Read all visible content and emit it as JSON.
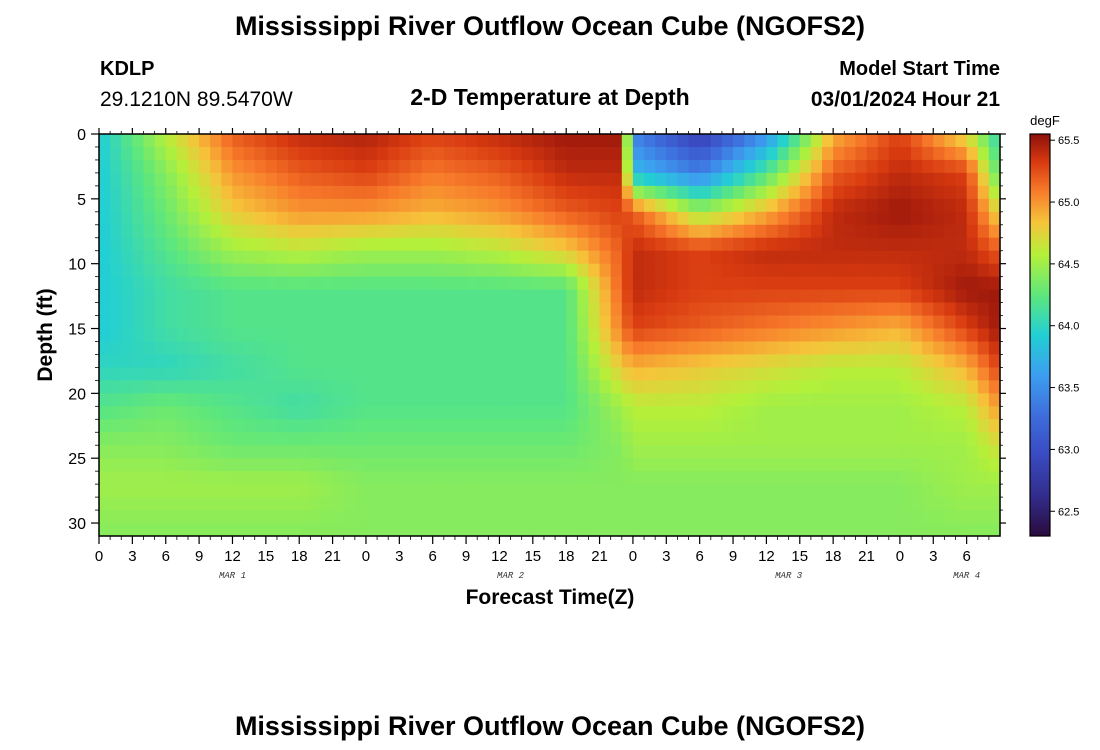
{
  "header": {
    "title": "Mississippi River Outflow Ocean Cube (NGOFS2)",
    "station_id": "KDLP",
    "station_coords": "29.1210N  89.5470W",
    "plot_title": "2-D Temperature at Depth",
    "model_start_label": "Model Start Time",
    "model_start_value": "03/01/2024 Hour 21"
  },
  "footer": {
    "title": "Mississippi River Outflow Ocean Cube (NGOFS2)"
  },
  "chart_data": {
    "type": "heatmap",
    "title": "2-D Temperature at Depth",
    "xlabel": "Forecast Time(Z)",
    "ylabel": "Depth (ft)",
    "xlim_hours": [
      0,
      81
    ],
    "ylim": [
      0,
      31
    ],
    "x_tick_labels": [
      "0",
      "3",
      "6",
      "9",
      "12",
      "15",
      "18",
      "21",
      "0",
      "3",
      "6",
      "9",
      "12",
      "15",
      "18",
      "21",
      "0",
      "3",
      "6",
      "9",
      "12",
      "15",
      "18",
      "21",
      "0",
      "3",
      "6"
    ],
    "y_ticks": [
      0,
      5,
      10,
      15,
      20,
      25,
      30
    ],
    "day_labels": [
      {
        "label": "MAR 1",
        "hour": 12
      },
      {
        "label": "MAR 2",
        "hour": 37
      },
      {
        "label": "MAR 3",
        "hour": 62
      },
      {
        "label": "MAR 4",
        "hour": 78
      }
    ],
    "colorbar": {
      "unit": "degF",
      "min": 62.3,
      "max": 65.55,
      "ticks": [
        62.5,
        63.0,
        63.5,
        64.0,
        64.5,
        65.0,
        65.5
      ],
      "tick_labels": [
        "62.5",
        "63.0",
        "63.5",
        "64.0",
        "64.5",
        "65.0",
        "65.5"
      ]
    },
    "depths_ft": [
      0,
      3,
      6,
      9,
      12,
      15,
      18,
      21,
      24,
      27,
      31
    ],
    "times_h": [
      0,
      6,
      12,
      18,
      24,
      30,
      36,
      42,
      47,
      48,
      54,
      60,
      66,
      72,
      78,
      81
    ],
    "temperature_degF": [
      [
        63.9,
        64.6,
        65.2,
        65.4,
        65.45,
        65.3,
        65.4,
        65.5,
        65.5,
        63.4,
        62.8,
        63.5,
        64.9,
        65.3,
        64.7,
        64.0
      ],
      [
        63.9,
        64.4,
        65.0,
        65.2,
        65.3,
        65.1,
        65.2,
        65.4,
        65.4,
        63.8,
        63.4,
        64.2,
        65.2,
        65.4,
        65.3,
        64.2
      ],
      [
        63.9,
        64.3,
        64.8,
        65.0,
        65.0,
        64.9,
        65.0,
        65.2,
        65.3,
        65.2,
        64.5,
        64.9,
        65.4,
        65.5,
        65.4,
        64.7
      ],
      [
        63.9,
        64.2,
        64.5,
        64.6,
        64.5,
        64.5,
        64.6,
        64.8,
        65.2,
        65.4,
        65.3,
        65.4,
        65.4,
        65.4,
        65.4,
        65.2
      ],
      [
        63.9,
        64.1,
        64.2,
        64.2,
        64.2,
        64.2,
        64.2,
        64.2,
        65.2,
        65.4,
        65.3,
        65.3,
        65.3,
        65.3,
        65.5,
        65.5
      ],
      [
        63.9,
        64.1,
        64.2,
        64.2,
        64.2,
        64.2,
        64.2,
        64.2,
        65.1,
        65.3,
        65.2,
        65.1,
        65.0,
        64.9,
        65.3,
        65.5
      ],
      [
        64.0,
        64.0,
        64.1,
        64.2,
        64.2,
        64.2,
        64.2,
        64.2,
        64.8,
        64.9,
        64.8,
        64.7,
        64.6,
        64.6,
        64.9,
        65.3
      ],
      [
        64.2,
        64.3,
        64.2,
        64.1,
        64.2,
        64.2,
        64.2,
        64.2,
        64.5,
        64.6,
        64.6,
        64.5,
        64.5,
        64.5,
        64.6,
        65.0
      ],
      [
        64.4,
        64.4,
        64.3,
        64.3,
        64.3,
        64.3,
        64.3,
        64.3,
        64.4,
        64.5,
        64.5,
        64.5,
        64.5,
        64.5,
        64.5,
        64.7
      ],
      [
        64.5,
        64.5,
        64.5,
        64.5,
        64.4,
        64.4,
        64.4,
        64.4,
        64.4,
        64.4,
        64.4,
        64.4,
        64.4,
        64.4,
        64.5,
        64.5
      ],
      [
        64.4,
        64.4,
        64.4,
        64.4,
        64.4,
        64.4,
        64.4,
        64.4,
        64.4,
        64.4,
        64.4,
        64.4,
        64.4,
        64.4,
        64.4,
        64.4
      ]
    ]
  }
}
